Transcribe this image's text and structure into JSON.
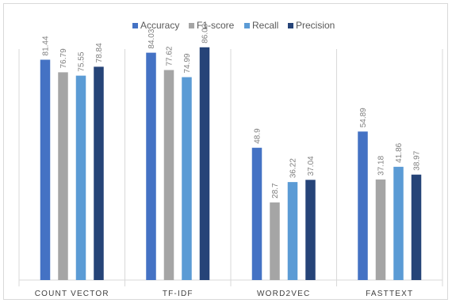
{
  "chart_data": {
    "type": "bar",
    "title": "",
    "xlabel": "",
    "ylabel": "",
    "ylim": [
      0,
      100
    ],
    "grid": false,
    "legend_position": "top",
    "categories": [
      "COUNT VECTOR",
      "TF-IDF",
      "WORD2VEC",
      "FASTTEXT"
    ],
    "series": [
      {
        "name": "Accuracy",
        "color": "#4472c4",
        "values": [
          81.44,
          84.03,
          48.9,
          54.89
        ],
        "labels": [
          "81.44",
          "84.03",
          "48.9",
          "54.89"
        ]
      },
      {
        "name": "F1-score",
        "color": "#a5a5a5",
        "values": [
          76.79,
          77.62,
          28.7,
          37.18
        ],
        "labels": [
          "76.79",
          "77.62",
          "28.7",
          "37.18"
        ]
      },
      {
        "name": "Recall",
        "color": "#5b9bd5",
        "values": [
          75.55,
          74.99,
          36.22,
          41.86
        ],
        "labels": [
          "75.55",
          "74.99",
          "36.22",
          "41.86"
        ]
      },
      {
        "name": "Precision",
        "color": "#264478",
        "values": [
          78.84,
          86.03,
          37.04,
          38.97
        ],
        "labels": [
          "78.84",
          "86.03",
          "37.04",
          "38.97"
        ]
      }
    ]
  }
}
